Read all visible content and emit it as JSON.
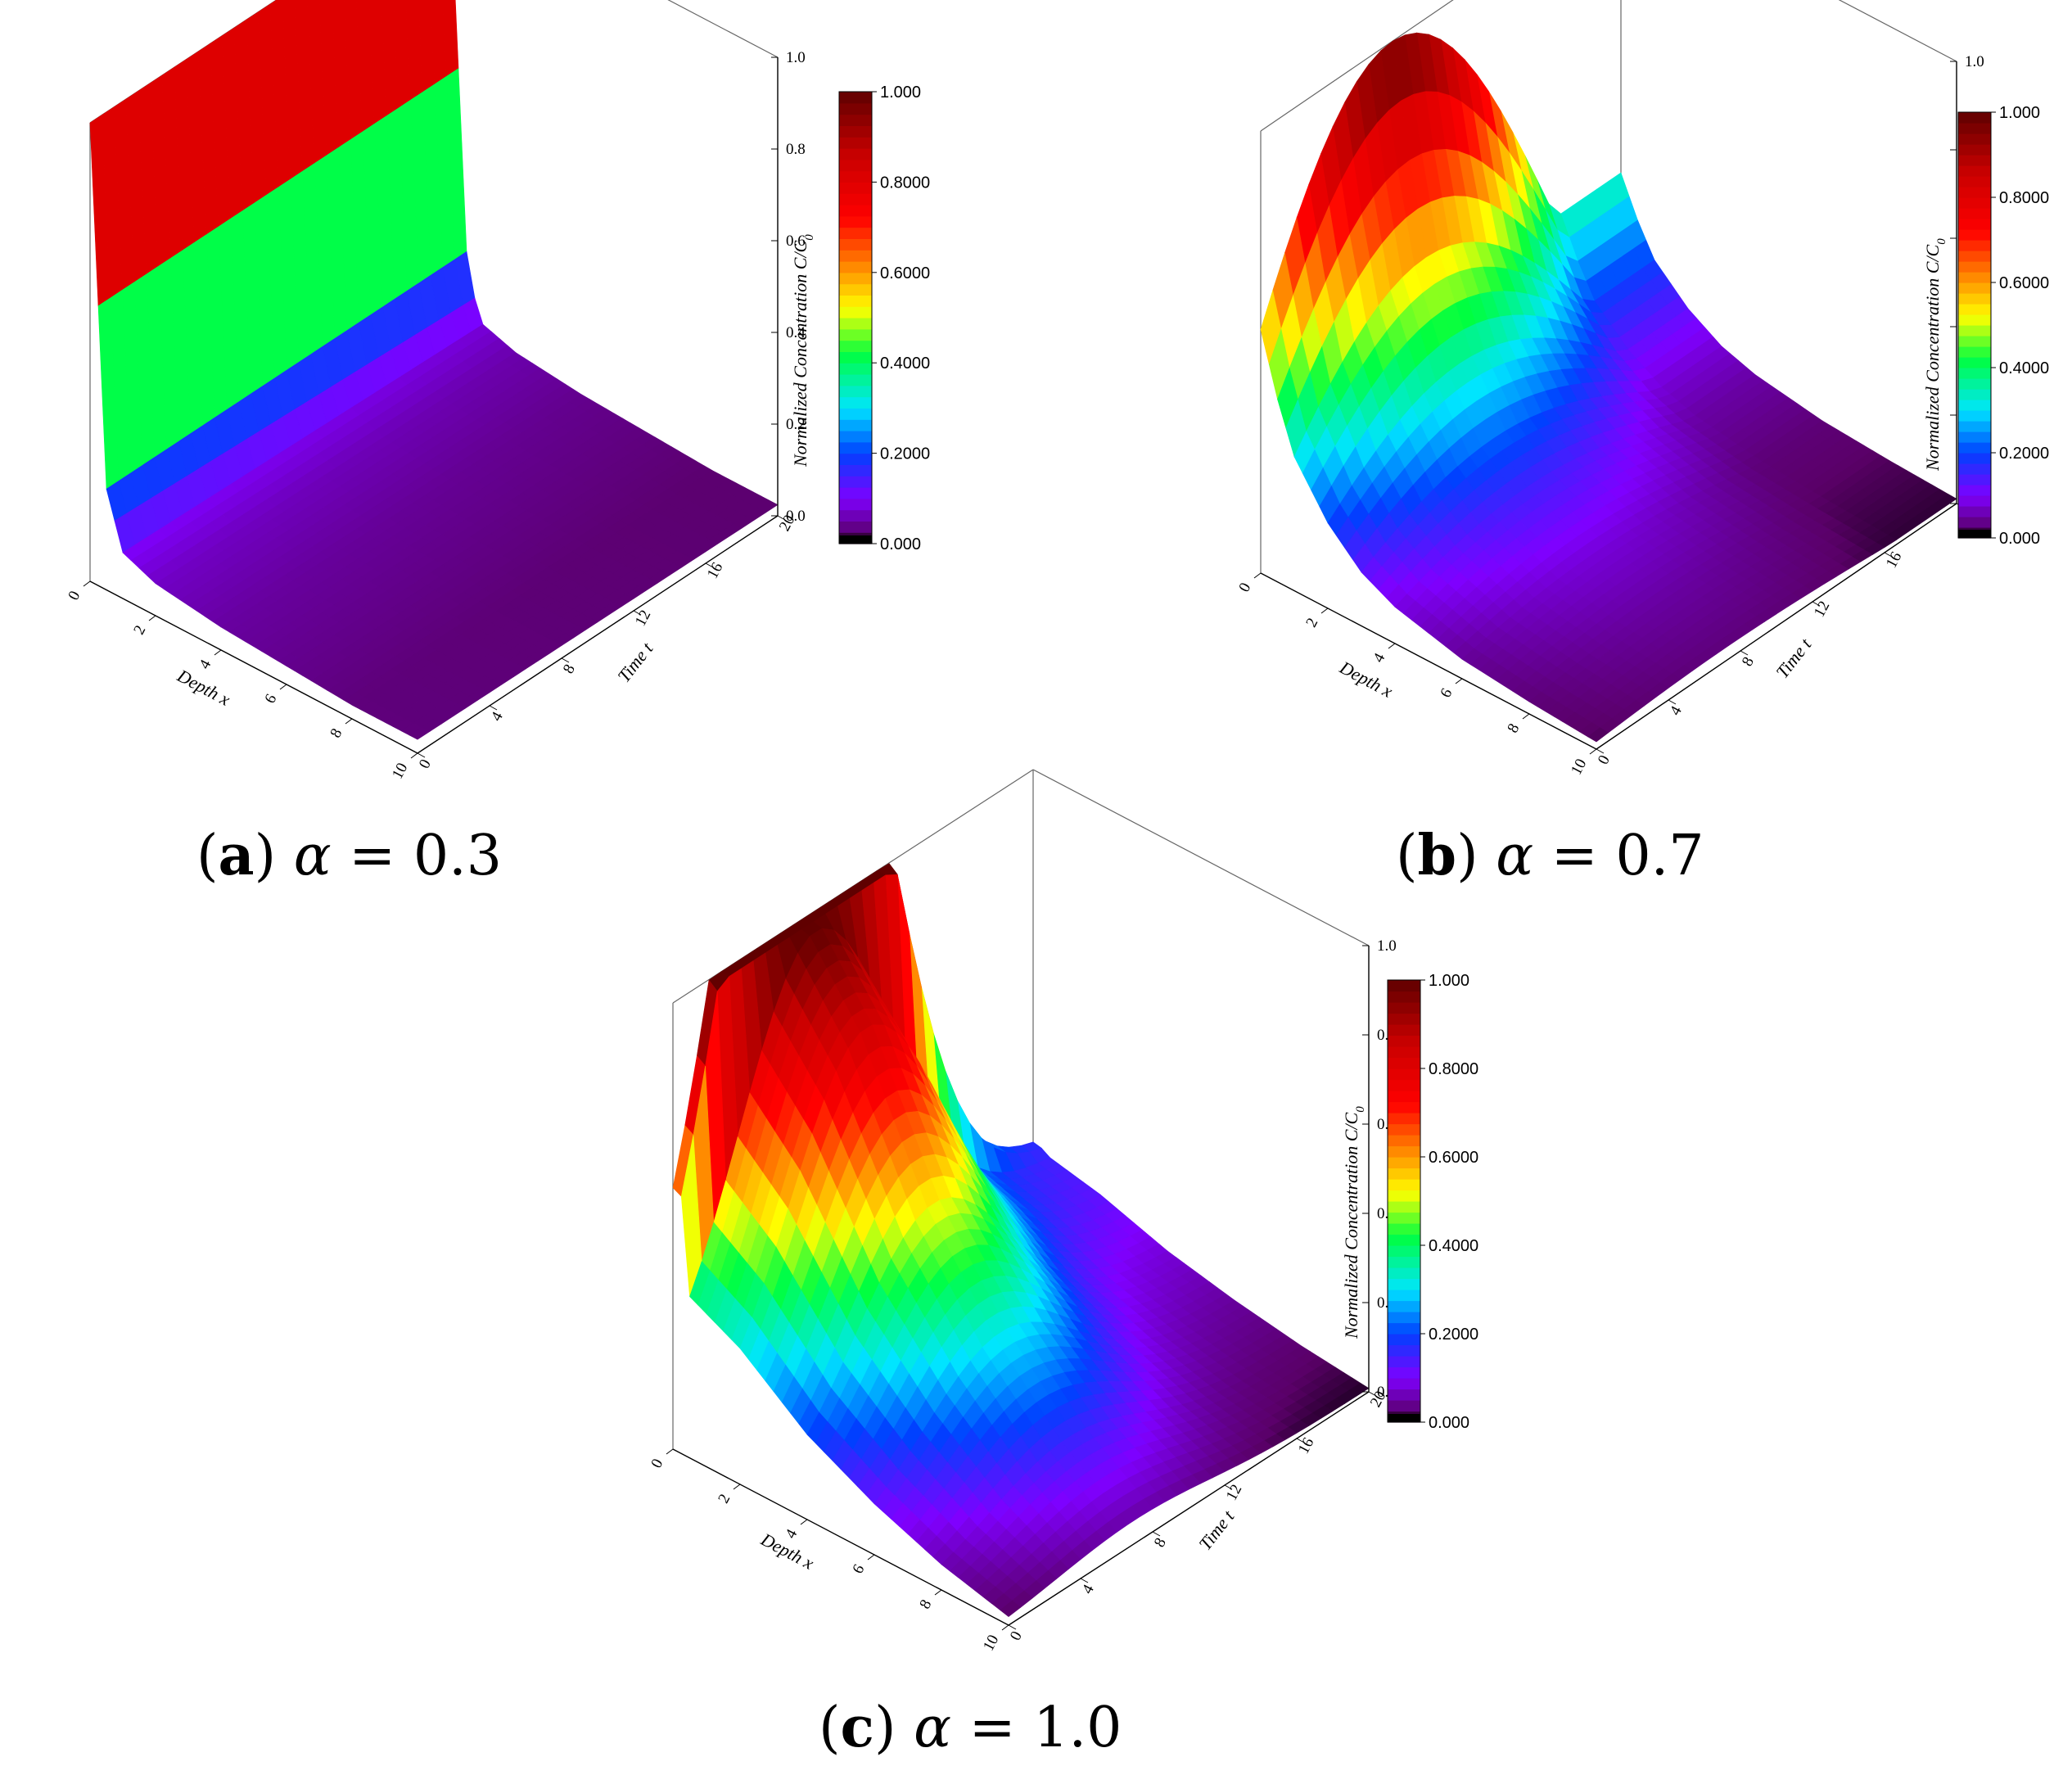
{
  "figure": {
    "panels": [
      {
        "id": "a",
        "caption": {
          "letter": "a",
          "symbol": "α",
          "relation": "=",
          "value": "0.3"
        },
        "chart_data": {
          "type": "surface3d",
          "xlabel": "Depth x",
          "ylabel": "Time t",
          "zlabel": "Normalized Concentration C/C",
          "zlabel_sub": "0",
          "xlim": [
            0,
            10
          ],
          "ylim": [
            0,
            20
          ],
          "zlim": [
            0,
            1
          ],
          "x_ticks": [
            "0",
            "2",
            "4",
            "6",
            "8",
            "10"
          ],
          "y_ticks": [
            "0",
            "4",
            "8",
            "12",
            "16",
            "20"
          ],
          "z_ticks": [
            "0.0",
            "0.2",
            "0.4",
            "0.6",
            "0.8",
            "1.0"
          ],
          "colorbar": {
            "ticks": [
              "0.000",
              "0.2000",
              "0.4000",
              "0.6000",
              "0.8000",
              "1.000"
            ],
            "range": [
              0,
              1
            ],
            "colormap": "rainbow"
          },
          "surface_profile": {
            "x": [
              0,
              0.5,
              1,
              2,
              3,
              4,
              6,
              8,
              10
            ],
            "c": [
              1.0,
              0.22,
              0.1,
              0.07,
              0.06,
              0.05,
              0.04,
              0.03,
              0.03
            ]
          }
        }
      },
      {
        "id": "b",
        "caption": {
          "letter": "b",
          "symbol": "α",
          "relation": "=",
          "value": "0.7"
        },
        "chart_data": {
          "type": "surface3d",
          "xlabel": "Depth x",
          "ylabel": "Time t",
          "zlabel": "Normalized Concentration C/C",
          "zlabel_sub": "0",
          "xlim": [
            0,
            10
          ],
          "ylim": [
            0,
            20
          ],
          "zlim": [
            0,
            1
          ],
          "x_ticks": [
            "0",
            "2",
            "4",
            "6",
            "8",
            "10"
          ],
          "y_ticks": [
            "0",
            "4",
            "8",
            "12",
            "16",
            "20"
          ],
          "z_ticks": [
            "0.0",
            "0.2",
            "0.4",
            "0.6",
            "0.8",
            "1.0"
          ],
          "colorbar": {
            "ticks": [
              "0.000",
              "0.2000",
              "0.4000",
              "0.6000",
              "0.8000",
              "1.000"
            ],
            "range": [
              0,
              1
            ],
            "colormap": "rainbow"
          },
          "surface_profile": {
            "x": [
              0,
              0.5,
              1,
              2,
              3,
              4,
              6,
              8,
              10
            ],
            "c": [
              1.0,
              0.75,
              0.55,
              0.35,
              0.22,
              0.15,
              0.08,
              0.05,
              0.03
            ]
          }
        }
      },
      {
        "id": "c",
        "caption": {
          "letter": "c",
          "symbol": "α",
          "relation": "=",
          "value": "1.0"
        },
        "chart_data": {
          "type": "surface3d",
          "xlabel": "Depth x",
          "ylabel": "Time t",
          "zlabel": "Normalized Concentration C/C",
          "zlabel_sub": "0",
          "xlim": [
            0,
            10
          ],
          "ylim": [
            0,
            20
          ],
          "zlim": [
            0,
            1
          ],
          "x_ticks": [
            "0",
            "2",
            "4",
            "6",
            "8",
            "10"
          ],
          "y_ticks": [
            "0",
            "4",
            "8",
            "12",
            "16",
            "20"
          ],
          "z_ticks": [
            "0.0",
            "0.2",
            "0.4",
            "0.6",
            "0.8",
            "1.0"
          ],
          "colorbar": {
            "ticks": [
              "0.000",
              "0.2000",
              "0.4000",
              "0.6000",
              "0.8000",
              "1.000"
            ],
            "range": [
              0,
              1
            ],
            "colormap": "rainbow"
          },
          "surface_profile": {
            "x": [
              0,
              0.5,
              1,
              2,
              3,
              4,
              6,
              8,
              10
            ],
            "c": [
              1.0,
              0.95,
              0.9,
              0.8,
              0.65,
              0.5,
              0.3,
              0.15,
              0.05
            ]
          }
        }
      }
    ]
  }
}
